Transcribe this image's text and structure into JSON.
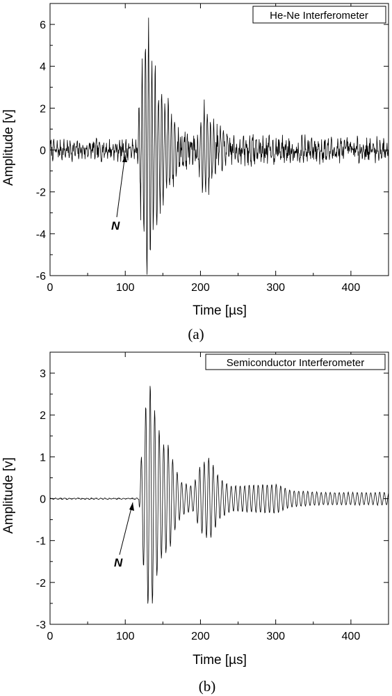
{
  "chart_data": [
    {
      "panel": "a",
      "type": "line",
      "caption": "(a)",
      "legend_label": "He-Ne Interferometer",
      "legend_position": "top-right",
      "xlabel": "Time [µs]",
      "ylabel": "Amplitude [v]",
      "xlim": [
        0,
        450
      ],
      "ylim": [
        -6,
        7
      ],
      "xticks": [
        0,
        100,
        200,
        300,
        400
      ],
      "yticks": [
        -6,
        -4,
        -2,
        0,
        2,
        4,
        6
      ],
      "annotation": {
        "text": "N",
        "points_to": [
          102,
          -0.5
        ]
      },
      "series": [
        {
          "x": [
            0,
            20,
            40,
            60,
            80,
            100,
            115,
            120,
            123,
            126,
            128,
            130,
            132,
            135,
            140,
            145,
            150,
            155,
            158,
            162,
            170,
            180,
            195,
            205,
            210,
            215,
            220,
            230,
            250,
            300,
            350,
            400,
            450
          ],
          "y": [
            0,
            0.3,
            -0.3,
            0.3,
            -0.3,
            0.3,
            -0.3,
            2.5,
            -4.0,
            5.0,
            -5.2,
            6.5,
            -3.0,
            3.5,
            -3.5,
            1.8,
            -2.5,
            2.5,
            -2.0,
            1.5,
            -1.0,
            0.8,
            0.5,
            2.0,
            -1.8,
            1.8,
            -1.0,
            0.8,
            -0.6,
            0.5,
            -0.5,
            0.5,
            0
          ],
          "envelope_x": [
            0,
            115,
            120,
            128,
            140,
            150,
            158,
            170,
            195,
            205,
            212,
            220,
            240,
            300,
            450
          ],
          "envelope": [
            0.45,
            0.45,
            2.5,
            6.0,
            3.5,
            2.6,
            2.2,
            1.0,
            0.7,
            2.0,
            1.8,
            1.0,
            0.7,
            0.6,
            0.5
          ]
        }
      ]
    },
    {
      "panel": "b",
      "type": "line",
      "caption": "(b)",
      "legend_label": "Semiconductor Interferometer",
      "legend_position": "top-right",
      "xlabel": "Time [µs]",
      "ylabel": "Amplitude [v]",
      "xlim": [
        0,
        450
      ],
      "ylim": [
        -3,
        3.5
      ],
      "xticks": [
        0,
        100,
        200,
        300,
        400
      ],
      "yticks": [
        -3,
        -2,
        -1,
        0,
        1,
        2,
        3
      ],
      "annotation": {
        "text": "N",
        "points_to": [
          112,
          -0.05
        ]
      },
      "series": [
        {
          "x": [
            0,
            50,
            100,
            118,
            122,
            126,
            130,
            133,
            136,
            140,
            150,
            158,
            165,
            175,
            190,
            200,
            210,
            215,
            225,
            240,
            260,
            280,
            300,
            320,
            350,
            380,
            400,
            420,
            450
          ],
          "y": [
            0,
            0.02,
            -0.02,
            0.05,
            1.0,
            -2.2,
            2.4,
            -2.8,
            2.7,
            -2.0,
            1.2,
            -1.4,
            0.8,
            -0.4,
            0.3,
            0.8,
            -1.0,
            0.9,
            -0.4,
            0.3,
            -0.3,
            0.3,
            -0.3,
            0.2,
            -0.2,
            0.1,
            -0.15,
            0.15,
            0
          ],
          "envelope_x": [
            0,
            118,
            122,
            128,
            134,
            140,
            150,
            158,
            165,
            175,
            190,
            200,
            212,
            225,
            240,
            300,
            320,
            360,
            380,
            450
          ],
          "envelope": [
            0.01,
            0.01,
            1.2,
            2.4,
            2.8,
            2.0,
            1.3,
            1.3,
            0.8,
            0.4,
            0.3,
            0.8,
            1.0,
            0.5,
            0.3,
            0.35,
            0.2,
            0.15,
            0.15,
            0.15
          ]
        }
      ]
    }
  ]
}
